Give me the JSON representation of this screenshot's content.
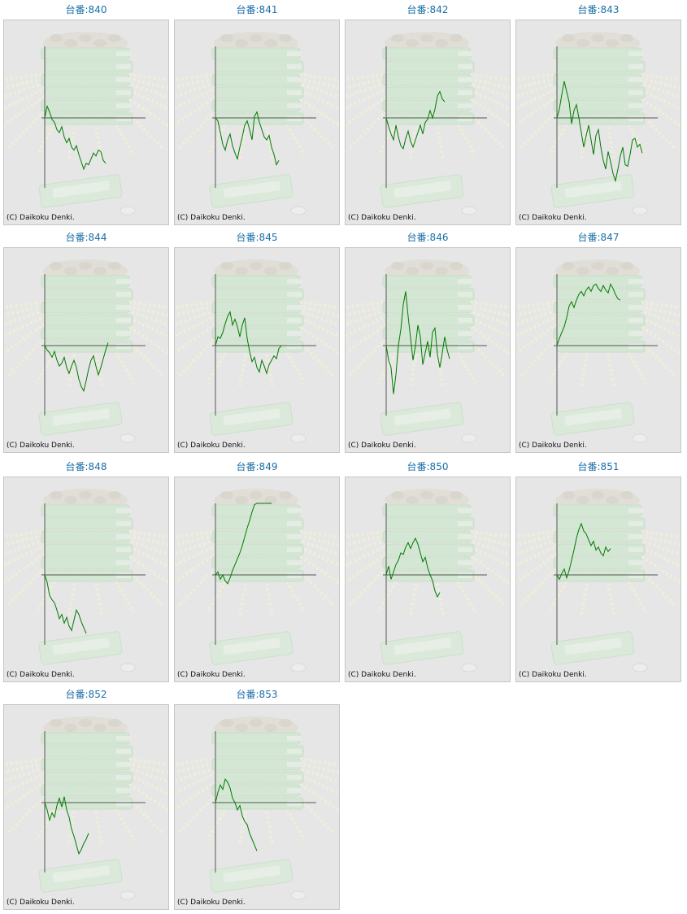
{
  "copyright": "(C) Daikoku Denki.",
  "colors": {
    "title": "#1a6fa8",
    "line": "#007a00",
    "axis": "#555555",
    "panel": "#e6e6e6"
  },
  "chart_data": [
    {
      "type": "line",
      "title": "台番:840",
      "values": [
        0,
        16,
        8,
        -2,
        -6,
        -16,
        -20,
        -12,
        -26,
        -34,
        -28,
        -40,
        -44,
        -38,
        -50,
        -60,
        -70,
        -62,
        -64,
        -56,
        -48,
        -52,
        -44,
        -46,
        -58,
        -62
      ]
    },
    {
      "type": "line",
      "title": "台番:841",
      "values": [
        0,
        -4,
        -20,
        -36,
        -44,
        -30,
        -22,
        -38,
        -48,
        -56,
        -40,
        -26,
        -10,
        -4,
        -16,
        -30,
        2,
        8,
        -6,
        -16,
        -26,
        -30,
        -24,
        -40,
        -50,
        -64,
        -58
      ]
    },
    {
      "type": "line",
      "title": "台番:842",
      "values": [
        0,
        -12,
        -22,
        -30,
        -10,
        -26,
        -38,
        -42,
        -28,
        -18,
        -32,
        -40,
        -30,
        -20,
        -10,
        -22,
        -6,
        -2,
        10,
        0,
        12,
        30,
        36,
        26,
        22
      ]
    },
    {
      "type": "line",
      "title": "台番:843",
      "values": [
        0,
        12,
        32,
        50,
        36,
        22,
        -8,
        10,
        18,
        0,
        -20,
        -40,
        -24,
        -10,
        -30,
        -50,
        -24,
        -16,
        -40,
        -58,
        -70,
        -46,
        -60,
        -76,
        -86,
        -70,
        -52,
        -40,
        -64,
        -66,
        -50,
        -30,
        -28,
        -40,
        -36,
        -48
      ]
    },
    {
      "type": "line",
      "title": "台番:844",
      "values": [
        0,
        -6,
        -10,
        -16,
        -8,
        -20,
        -28,
        -24,
        -16,
        -30,
        -38,
        -28,
        -20,
        -30,
        -46,
        -56,
        -62,
        -48,
        -32,
        -20,
        -14,
        -28,
        -40,
        -30,
        -18,
        -6,
        4
      ]
    },
    {
      "type": "line",
      "title": "台番:845",
      "values": [
        0,
        12,
        10,
        18,
        30,
        40,
        46,
        28,
        36,
        26,
        12,
        28,
        38,
        10,
        -8,
        -22,
        -16,
        -30,
        -36,
        -20,
        -28,
        -38,
        -26,
        -20,
        -14,
        -18,
        -4,
        0
      ]
    },
    {
      "type": "line",
      "title": "台番:846",
      "values": [
        0,
        -20,
        -30,
        -66,
        -40,
        0,
        22,
        56,
        74,
        40,
        10,
        -20,
        0,
        28,
        12,
        -26,
        -10,
        6,
        -16,
        18,
        24,
        -12,
        -30,
        -10,
        12,
        -6,
        -18
      ]
    },
    {
      "type": "line",
      "title": "台番:847",
      "values": [
        0,
        10,
        18,
        26,
        38,
        54,
        60,
        52,
        62,
        70,
        74,
        68,
        76,
        80,
        74,
        82,
        84,
        78,
        74,
        82,
        76,
        72,
        84,
        78,
        70,
        64,
        62
      ]
    },
    {
      "type": "line",
      "title": "台番:848",
      "values": [
        0,
        -10,
        -28,
        -34,
        -38,
        -48,
        -60,
        -54,
        -66,
        -58,
        -70,
        -76,
        -62,
        -48,
        -54,
        -64,
        -72,
        -80
      ]
    },
    {
      "type": "line",
      "title": "台番:849",
      "values": [
        0,
        4,
        -6,
        0,
        -8,
        -12,
        -4,
        6,
        14,
        22,
        30,
        40,
        52,
        64,
        74,
        86,
        96,
        108,
        118,
        130,
        142,
        150,
        160,
        170
      ]
    },
    {
      "type": "line",
      "title": "台番:850",
      "values": [
        0,
        12,
        -6,
        4,
        14,
        20,
        30,
        28,
        38,
        44,
        36,
        44,
        50,
        42,
        30,
        18,
        24,
        10,
        0,
        -8,
        -22,
        -30,
        -24
      ]
    },
    {
      "type": "line",
      "title": "台番:851",
      "values": [
        0,
        -6,
        2,
        8,
        -4,
        6,
        20,
        34,
        50,
        62,
        70,
        60,
        56,
        48,
        40,
        46,
        34,
        38,
        30,
        26,
        38,
        32,
        36
      ]
    },
    {
      "type": "line",
      "title": "台番:852",
      "values": [
        0,
        -10,
        -24,
        -14,
        -20,
        -4,
        6,
        -6,
        8,
        -10,
        -20,
        -36,
        -46,
        -58,
        -70,
        -64,
        -56,
        -50,
        -42
      ]
    },
    {
      "type": "line",
      "title": "台番:853",
      "values": [
        0,
        14,
        24,
        18,
        32,
        28,
        20,
        6,
        0,
        -10,
        -4,
        -18,
        -26,
        -30,
        -42,
        -50,
        -58,
        -66
      ]
    }
  ]
}
